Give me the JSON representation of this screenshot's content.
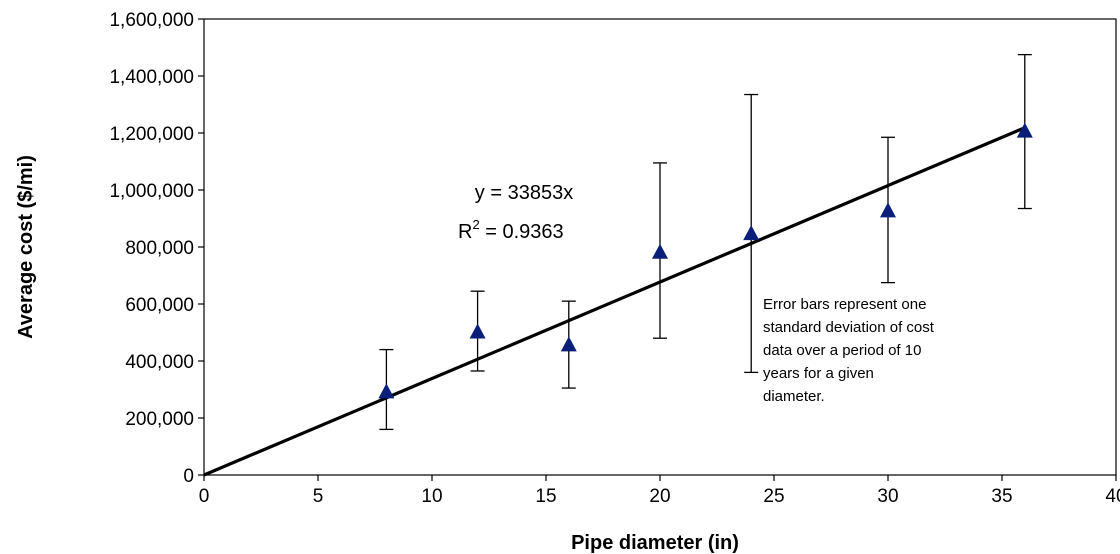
{
  "chart_data": {
    "type": "scatter",
    "title": "",
    "xlabel": "Pipe diameter (in)",
    "ylabel": "Average cost ($/mi)",
    "xlim": [
      0,
      40
    ],
    "ylim": [
      0,
      1600000
    ],
    "x_ticks": [
      0,
      5,
      10,
      15,
      20,
      25,
      30,
      35,
      40
    ],
    "x_tick_labels": [
      "0",
      "5",
      "10",
      "15",
      "20",
      "25",
      "30",
      "35",
      "40"
    ],
    "y_ticks": [
      0,
      200000,
      400000,
      600000,
      800000,
      1000000,
      1200000,
      1400000,
      1600000
    ],
    "y_tick_labels": [
      "0",
      "200,000",
      "400,000",
      "600,000",
      "800,000",
      "1,000,000",
      "1,200,000",
      "1,400,000",
      "1,600,000"
    ],
    "grid": false,
    "series": [
      {
        "marker": "triangle",
        "color": "#0a1f7a",
        "points": [
          {
            "x": 8,
            "y": 290000,
            "err_low": 160000,
            "err_high": 440000
          },
          {
            "x": 12,
            "y": 500000,
            "err_low": 365000,
            "err_high": 645000
          },
          {
            "x": 16,
            "y": 455000,
            "err_low": 305000,
            "err_high": 610000
          },
          {
            "x": 20,
            "y": 780000,
            "err_low": 480000,
            "err_high": 1095000
          },
          {
            "x": 24,
            "y": 845000,
            "err_low": 360000,
            "err_high": 1335000
          },
          {
            "x": 30,
            "y": 925000,
            "err_low": 675000,
            "err_high": 1185000
          },
          {
            "x": 36,
            "y": 1205000,
            "err_low": 935000,
            "err_high": 1475000
          }
        ]
      }
    ],
    "trendline": {
      "slope": 33853,
      "intercept": 0,
      "x_range": [
        0,
        36
      ]
    },
    "equation_line1": "y = 33853x",
    "equation_r_prefix": "R",
    "equation_r_sup": "2",
    "equation_r_value": " = 0.9363",
    "note_lines": [
      "Error bars represent one",
      "standard deviation of cost",
      "data over a period of 10",
      "years for a given",
      "diameter."
    ]
  }
}
